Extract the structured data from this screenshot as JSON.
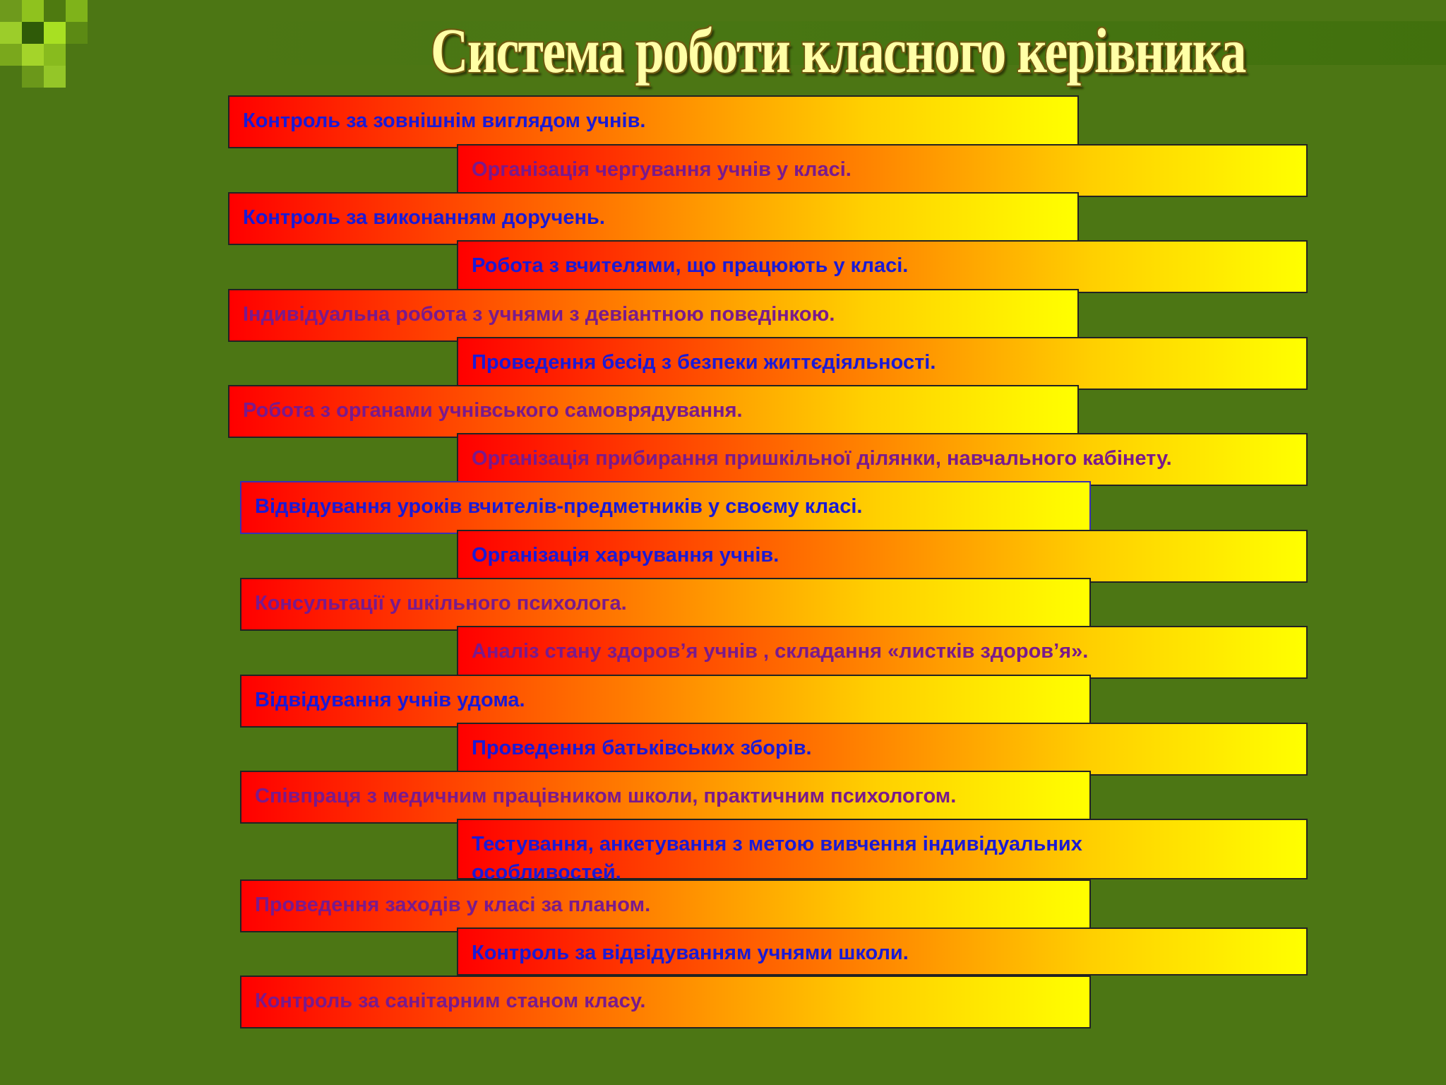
{
  "title": "Система роботи класного керівника",
  "colors": {
    "background": "#4c7614",
    "box_gradient_start": "#ff0000",
    "box_gradient_end": "#ffff00",
    "text_blue": "#1a1ad6",
    "text_purple": "#7a1a8c",
    "title_fill": "#ffffa6"
  },
  "items": [
    {
      "text": "Контроль за зовнішнім  виглядом учнів.",
      "color": "blue"
    },
    {
      "text": "Організація чергування учнів у класі.",
      "color": "purple"
    },
    {
      "text": "Контроль за виконанням доручень.",
      "color": "blue"
    },
    {
      "text": "Робота з вчителями, що працюють у класі.",
      "color": "blue"
    },
    {
      "text": "Індивідуальна робота з учнями з девіантною поведінкою.",
      "color": "purple"
    },
    {
      "text": "Проведення бесід з безпеки життєдіяльності.",
      "color": "blue"
    },
    {
      "text": "Робота з органами учнівського самоврядування.",
      "color": "purple"
    },
    {
      "text": "Організація прибирання пришкільної ділянки, навчального кабінету.",
      "color": "purple"
    },
    {
      "text": "Відвідування уроків вчителів-предметників у своєму класі.",
      "color": "blue"
    },
    {
      "text": "Організація харчування учнів.",
      "color": "blue"
    },
    {
      "text": "Консультації у шкільного психолога.",
      "color": "purple"
    },
    {
      "text": "Аналіз стану здоров’я учнів , складання «листків здоров’я».",
      "color": "purple"
    },
    {
      "text": "Відвідування учнів удома.",
      "color": "blue"
    },
    {
      "text": "Проведення батьківських зборів.",
      "color": "blue"
    },
    {
      "text": "Співпраця з медичним працівником школи, практичним психологом.",
      "color": "purple"
    },
    {
      "text": "Тестування, анкетування з метою вивчення індивідуальних особливостей.",
      "color": "blue"
    },
    {
      "text": "Проведення заходів у класі за планом.",
      "color": "purple"
    },
    {
      "text": "Контроль за відвідуванням учнями школи.",
      "color": "blue"
    },
    {
      "text": "Контроль за санітарним станом класу.",
      "color": "purple"
    }
  ]
}
